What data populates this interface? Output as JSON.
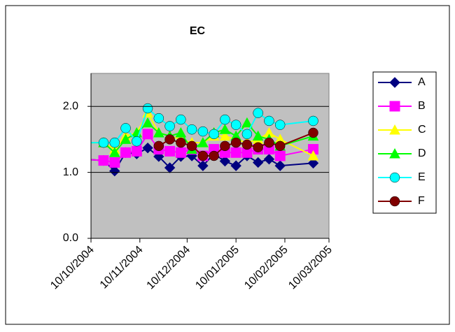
{
  "chart_data": {
    "type": "line",
    "title": "EC",
    "x": [
      "2004-10-04",
      "2004-10-18",
      "2004-10-25",
      "2004-11-01",
      "2004-11-08",
      "2004-11-15",
      "2004-11-22",
      "2004-11-29",
      "2004-12-06",
      "2004-12-13",
      "2004-12-20",
      "2004-12-27",
      "2005-01-03",
      "2005-01-10",
      "2005-01-17",
      "2005-01-24",
      "2005-01-31",
      "2005-02-07",
      "2005-02-28"
    ],
    "series": [
      {
        "name": "A",
        "color": "#000080",
        "marker": "diamond",
        "values": [
          1.2,
          1.18,
          1.02,
          1.3,
          1.28,
          1.37,
          1.24,
          1.07,
          1.24,
          1.25,
          1.1,
          1.28,
          1.17,
          1.1,
          1.25,
          1.15,
          1.2,
          1.1,
          1.14
        ]
      },
      {
        "name": "B",
        "color": "#ff00ff",
        "marker": "square",
        "values": [
          1.2,
          1.18,
          1.15,
          1.3,
          1.32,
          1.58,
          1.35,
          1.32,
          1.3,
          1.35,
          1.25,
          1.35,
          1.3,
          1.3,
          1.3,
          1.35,
          1.35,
          1.25,
          1.35
        ]
      },
      {
        "name": "C",
        "color": "#ffff00",
        "marker": "triangle",
        "values": [
          1.45,
          1.45,
          1.35,
          1.55,
          1.6,
          1.9,
          1.6,
          1.55,
          1.5,
          1.45,
          1.45,
          1.55,
          1.55,
          1.5,
          1.45,
          1.5,
          1.6,
          1.5,
          1.25
        ]
      },
      {
        "name": "D",
        "color": "#00ff00",
        "marker": "triangle",
        "values": [
          1.45,
          1.45,
          1.3,
          1.5,
          1.6,
          1.75,
          1.6,
          1.55,
          1.6,
          1.35,
          1.45,
          1.6,
          1.65,
          1.55,
          1.75,
          1.55,
          1.5,
          1.4,
          1.55
        ]
      },
      {
        "name": "E",
        "color": "#00ffff",
        "marker": "circle",
        "values": [
          1.45,
          1.45,
          1.45,
          1.67,
          1.47,
          1.97,
          1.82,
          1.7,
          1.8,
          1.65,
          1.62,
          1.58,
          1.8,
          1.72,
          1.58,
          1.9,
          1.78,
          1.72,
          1.78
        ]
      },
      {
        "name": "F",
        "color": "#800000",
        "marker": "circle",
        "values": [
          null,
          null,
          null,
          null,
          null,
          null,
          1.4,
          1.5,
          1.45,
          1.4,
          1.25,
          1.25,
          1.4,
          1.45,
          1.42,
          1.38,
          1.45,
          1.4,
          1.6
        ]
      }
    ],
    "xlim": [
      "2004-10-10",
      "2005-03-10"
    ],
    "xticks": [
      {
        "value": "2004-10-10",
        "label": "10/10/2004"
      },
      {
        "value": "2004-11-10",
        "label": "10/11/2004"
      },
      {
        "value": "2004-12-10",
        "label": "10/12/2004"
      },
      {
        "value": "2005-01-10",
        "label": "10/01/2005"
      },
      {
        "value": "2005-02-10",
        "label": "10/02/2005"
      },
      {
        "value": "2005-03-10",
        "label": "10/03/2005"
      }
    ],
    "ylim": [
      0,
      2.5
    ],
    "yticks": [
      {
        "value": 0,
        "label": "0.0"
      },
      {
        "value": 1,
        "label": "1.0"
      },
      {
        "value": 2,
        "label": "2.0"
      }
    ],
    "grid": true,
    "legend": "right",
    "plot_background": "#c0c0c0"
  }
}
